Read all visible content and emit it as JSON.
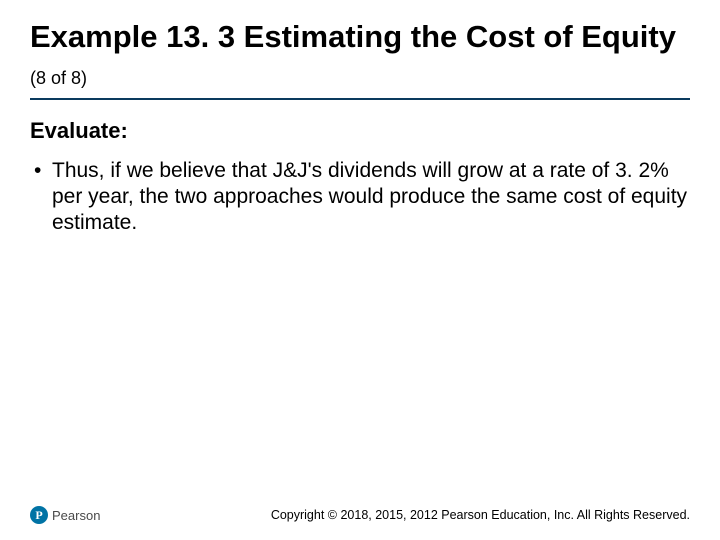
{
  "colors": {
    "text": "#000000",
    "rule": "#0a3a5e",
    "brand": "#0073a5",
    "logo_text": "#4a4a4a",
    "background": "#ffffff"
  },
  "title": {
    "main": "Example 13. 3 Estimating the Cost of Equity",
    "sub": "(8 of 8)",
    "main_fontsize": 31,
    "sub_fontsize": 18
  },
  "section_label": "Evaluate:",
  "section_fontsize": 22,
  "bullets": [
    "Thus, if we believe that J&J's dividends will grow at a rate of 3. 2% per year, the two approaches would produce the same cost of equity estimate."
  ],
  "bullet_fontsize": 21,
  "footer": {
    "logo_glyph": "P",
    "logo_text": "Pearson",
    "copyright": "Copyright © 2018, 2015, 2012 Pearson Education, Inc. All Rights Reserved."
  }
}
